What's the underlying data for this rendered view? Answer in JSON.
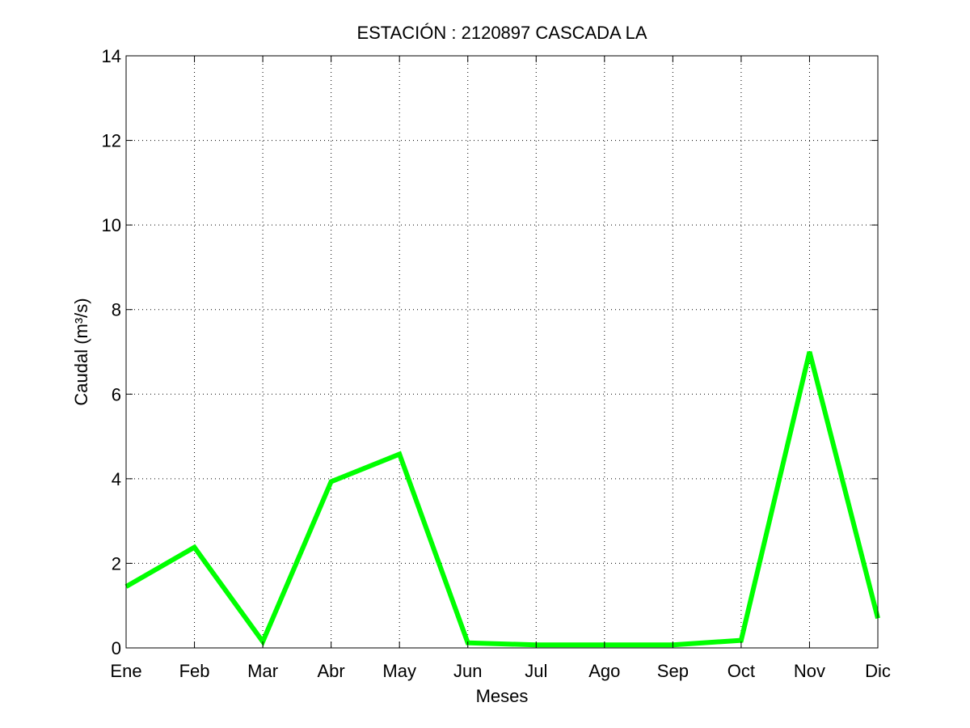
{
  "chart_data": {
    "type": "line",
    "title": "ESTACIÓN :  2120897  CASCADA LA",
    "xlabel": "Meses",
    "ylabel": "Caudal (m³/s)",
    "categories": [
      "Ene",
      "Feb",
      "Mar",
      "Abr",
      "May",
      "Jun",
      "Jul",
      "Ago",
      "Sep",
      "Oct",
      "Nov",
      "Dic"
    ],
    "y_ticks": [
      "0",
      "2",
      "4",
      "6",
      "8",
      "10",
      "12",
      "14"
    ],
    "ylim": [
      0,
      14
    ],
    "grid": true,
    "series": [
      {
        "values": [
          1.45,
          2.38,
          0.15,
          3.93,
          4.58,
          0.12,
          0.07,
          0.07,
          0.07,
          0.18,
          7.0,
          0.7
        ],
        "color": "#00ff00"
      }
    ]
  }
}
